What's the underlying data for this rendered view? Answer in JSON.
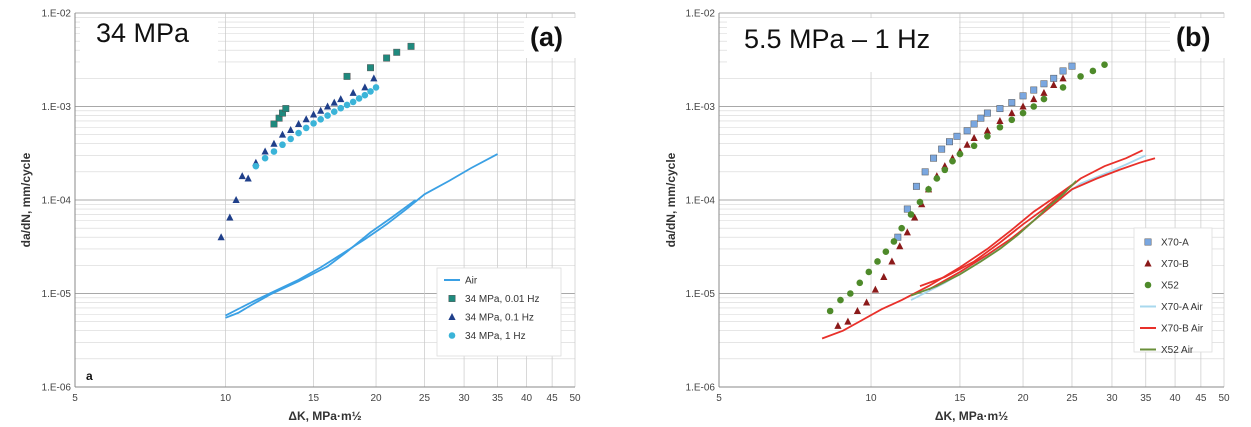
{
  "chart_data": [
    {
      "panel": "a",
      "type": "scatter",
      "title": "34 MPa",
      "panel_label": "(a)",
      "corner_note": "a",
      "xlabel": "ΔK, MPa·m½",
      "ylabel": "da/dN, mm/cycle",
      "xscale": "log",
      "yscale": "log",
      "xlim": [
        5,
        50
      ],
      "ylim": [
        1e-06,
        0.01
      ],
      "xticks": [
        5,
        10,
        15,
        20,
        25,
        30,
        35,
        40,
        45,
        50
      ],
      "yticks": [
        {
          "v": 1e-06,
          "label": "1.E-06"
        },
        {
          "v": 1e-05,
          "label": "1.E-05"
        },
        {
          "v": 0.0001,
          "label": "1.E-04"
        },
        {
          "v": 0.001,
          "label": "1.E-03"
        },
        {
          "v": 0.01,
          "label": "1.E-02"
        }
      ],
      "grid": true,
      "legend_position": "bottom-right",
      "series": [
        {
          "name": "Air",
          "kind": "line",
          "color": "#3aa0e4",
          "lines": [
            [
              [
                10,
                5.8e-06
              ],
              [
                10.7,
                7e-06
              ],
              [
                11.5,
                8.5e-06
              ],
              [
                12.5,
                1.05e-05
              ],
              [
                14,
                1.4e-05
              ],
              [
                15.5,
                1.9e-05
              ],
              [
                17,
                2.6e-05
              ],
              [
                19,
                3.8e-05
              ],
              [
                21,
                5.5e-05
              ],
              [
                23,
                8e-05
              ],
              [
                25,
                0.000115
              ],
              [
                28,
                0.00016
              ],
              [
                31,
                0.00022
              ],
              [
                35,
                0.00031
              ]
            ],
            [
              [
                10,
                5.5e-06
              ],
              [
                10.6,
                6.2e-06
              ],
              [
                11.3,
                7.6e-06
              ],
              [
                12.3,
                9.8e-06
              ],
              [
                14,
                1.35e-05
              ],
              [
                16,
                1.95e-05
              ],
              [
                17.5,
                2.8e-05
              ],
              [
                19.5,
                4.5e-05
              ],
              [
                21.5,
                6.5e-05
              ],
              [
                24,
                0.0001
              ]
            ]
          ]
        },
        {
          "name": "34 MPa, 0.01 Hz",
          "kind": "square",
          "color": "#1f8a7e",
          "points": [
            [
              12.5,
              0.00065
            ],
            [
              12.8,
              0.00075
            ],
            [
              13,
              0.00085
            ],
            [
              13.2,
              0.00095
            ],
            [
              17.5,
              0.0021
            ],
            [
              19.5,
              0.0026
            ],
            [
              21,
              0.0033
            ],
            [
              22,
              0.0038
            ],
            [
              23.5,
              0.0044
            ]
          ]
        },
        {
          "name": "34 MPa, 0.1 Hz",
          "kind": "triangle",
          "color": "#1f3f8a",
          "points": [
            [
              9.8,
              4e-05
            ],
            [
              10.2,
              6.5e-05
            ],
            [
              10.5,
              0.0001
            ],
            [
              10.8,
              0.00018
            ],
            [
              11.1,
              0.00017
            ],
            [
              11.5,
              0.00025
            ],
            [
              12,
              0.00033
            ],
            [
              12.5,
              0.0004
            ],
            [
              13,
              0.0005
            ],
            [
              13.5,
              0.00056
            ],
            [
              14,
              0.00065
            ],
            [
              14.5,
              0.00073
            ],
            [
              15,
              0.00082
            ],
            [
              15.5,
              0.0009
            ],
            [
              16,
              0.001
            ],
            [
              16.5,
              0.0011
            ],
            [
              17,
              0.0012
            ],
            [
              18,
              0.0014
            ],
            [
              19,
              0.0016
            ],
            [
              19.8,
              0.002
            ]
          ]
        },
        {
          "name": "34 MPa, 1 Hz",
          "kind": "circle",
          "color": "#3bb4d8",
          "points": [
            [
              11.5,
              0.00023
            ],
            [
              12,
              0.00028
            ],
            [
              12.5,
              0.00033
            ],
            [
              13,
              0.00039
            ],
            [
              13.5,
              0.00045
            ],
            [
              14,
              0.00052
            ],
            [
              14.5,
              0.00059
            ],
            [
              15,
              0.00066
            ],
            [
              15.5,
              0.00073
            ],
            [
              16,
              0.0008
            ],
            [
              16.5,
              0.00088
            ],
            [
              17,
              0.00096
            ],
            [
              17.5,
              0.00104
            ],
            [
              18,
              0.00112
            ],
            [
              18.5,
              0.00122
            ],
            [
              19,
              0.00132
            ],
            [
              19.5,
              0.00145
            ],
            [
              20,
              0.0016
            ]
          ]
        }
      ]
    },
    {
      "panel": "b",
      "type": "scatter",
      "title": "5.5 MPa – 1 Hz",
      "panel_label": "(b)",
      "xlabel": "ΔK, MPa·m½",
      "ylabel": "da/dN, mm/cycle",
      "xscale": "log",
      "yscale": "log",
      "xlim": [
        5,
        50
      ],
      "ylim": [
        1e-06,
        0.01
      ],
      "xticks": [
        5,
        10,
        15,
        20,
        25,
        30,
        35,
        40,
        45,
        50
      ],
      "yticks": [
        {
          "v": 1e-06,
          "label": "1.E-06"
        },
        {
          "v": 1e-05,
          "label": "1.E-05"
        },
        {
          "v": 0.0001,
          "label": "1.E-04"
        },
        {
          "v": 0.001,
          "label": "1.E-03"
        },
        {
          "v": 0.01,
          "label": "1.E-02"
        }
      ],
      "grid": true,
      "legend_position": "right",
      "series": [
        {
          "name": "X70-A",
          "kind": "square",
          "color": "#7aa7e0",
          "points": [
            [
              11.3,
              4e-05
            ],
            [
              11.8,
              8e-05
            ],
            [
              12.3,
              0.00014
            ],
            [
              12.8,
              0.0002
            ],
            [
              13.3,
              0.00028
            ],
            [
              13.8,
              0.00035
            ],
            [
              14.3,
              0.00042
            ],
            [
              14.8,
              0.00048
            ],
            [
              15.5,
              0.00055
            ],
            [
              16,
              0.00065
            ],
            [
              16.5,
              0.00075
            ],
            [
              17,
              0.00085
            ],
            [
              18,
              0.00095
            ],
            [
              19,
              0.0011
            ],
            [
              20,
              0.0013
            ],
            [
              21,
              0.0015
            ],
            [
              22,
              0.00175
            ],
            [
              23,
              0.002
            ],
            [
              24,
              0.0024
            ],
            [
              25,
              0.0027
            ]
          ]
        },
        {
          "name": "X70-B",
          "kind": "triangle",
          "color": "#8b1a1a",
          "points": [
            [
              8.6,
              4.5e-06
            ],
            [
              9,
              5e-06
            ],
            [
              9.4,
              6.5e-06
            ],
            [
              9.8,
              8e-06
            ],
            [
              10.2,
              1.1e-05
            ],
            [
              10.6,
              1.5e-05
            ],
            [
              11,
              2.2e-05
            ],
            [
              11.4,
              3.2e-05
            ],
            [
              11.8,
              4.5e-05
            ],
            [
              12.2,
              6.5e-05
            ],
            [
              12.6,
              9e-05
            ],
            [
              13,
              0.00013
            ],
            [
              13.5,
              0.00018
            ],
            [
              14,
              0.00023
            ],
            [
              14.5,
              0.00028
            ],
            [
              15,
              0.00033
            ],
            [
              15.5,
              0.00039
            ],
            [
              16,
              0.00046
            ],
            [
              17,
              0.00055
            ],
            [
              18,
              0.0007
            ],
            [
              19,
              0.00085
            ],
            [
              20,
              0.001
            ],
            [
              21,
              0.0012
            ],
            [
              22,
              0.0014
            ],
            [
              23,
              0.0017
            ],
            [
              24,
              0.002
            ]
          ]
        },
        {
          "name": "X52",
          "kind": "circle",
          "color": "#4e8a2a",
          "points": [
            [
              8.3,
              6.5e-06
            ],
            [
              8.7,
              8.5e-06
            ],
            [
              9.1,
              1e-05
            ],
            [
              9.5,
              1.3e-05
            ],
            [
              9.9,
              1.7e-05
            ],
            [
              10.3,
              2.2e-05
            ],
            [
              10.7,
              2.8e-05
            ],
            [
              11.1,
              3.6e-05
            ],
            [
              11.5,
              5e-05
            ],
            [
              12,
              7e-05
            ],
            [
              12.5,
              9.5e-05
            ],
            [
              13,
              0.00013
            ],
            [
              13.5,
              0.00017
            ],
            [
              14,
              0.00021
            ],
            [
              14.5,
              0.00026
            ],
            [
              15,
              0.00031
            ],
            [
              16,
              0.00038
            ],
            [
              17,
              0.00048
            ],
            [
              18,
              0.0006
            ],
            [
              19,
              0.00072
            ],
            [
              20,
              0.00085
            ],
            [
              21,
              0.001
            ],
            [
              22,
              0.0012
            ],
            [
              24,
              0.0016
            ],
            [
              26,
              0.0021
            ],
            [
              27.5,
              0.0024
            ],
            [
              29,
              0.0028
            ]
          ]
        },
        {
          "name": "X70-A Air",
          "kind": "line",
          "color": "#a8d8ee",
          "lines": [
            [
              [
                12,
                8.5e-06
              ],
              [
                14,
                1.3e-05
              ],
              [
                16,
                2e-05
              ],
              [
                18,
                3.1e-05
              ],
              [
                20,
                4.8e-05
              ],
              [
                22,
                7.5e-05
              ],
              [
                24,
                0.00011
              ],
              [
                26,
                0.00015
              ],
              [
                29,
                0.00019
              ],
              [
                32,
                0.00024
              ],
              [
                35,
                0.0003
              ]
            ]
          ]
        },
        {
          "name": "X70-B Air",
          "kind": "line",
          "color": "#e8302a",
          "lines": [
            [
              [
                8,
                3.3e-06
              ],
              [
                8.8,
                4e-06
              ],
              [
                9.6,
                5.2e-06
              ],
              [
                10.5,
                6.8e-06
              ],
              [
                11.5,
                8.5e-06
              ],
              [
                13,
                1.2e-05
              ],
              [
                15,
                1.9e-05
              ],
              [
                17,
                3e-05
              ],
              [
                19,
                4.8e-05
              ],
              [
                21,
                7.5e-05
              ],
              [
                23,
                0.000105
              ],
              [
                25,
                0.000145
              ]
            ],
            [
              [
                12.5,
                1.2e-05
              ],
              [
                14,
                1.5e-05
              ],
              [
                16,
                2.2e-05
              ],
              [
                18,
                3.5e-05
              ],
              [
                20,
                5.5e-05
              ],
              [
                22,
                8e-05
              ],
              [
                24,
                0.00012
              ],
              [
                26,
                0.00017
              ],
              [
                29,
                0.00023
              ],
              [
                32,
                0.00028
              ],
              [
                34.5,
                0.00034
              ]
            ],
            [
              [
                13,
                1.1e-05
              ],
              [
                15,
                1.7e-05
              ],
              [
                17,
                2.6e-05
              ],
              [
                19,
                3.9e-05
              ],
              [
                21,
                6e-05
              ],
              [
                23,
                9e-05
              ],
              [
                25,
                0.00013
              ],
              [
                28,
                0.00017
              ],
              [
                31,
                0.00021
              ],
              [
                34,
                0.00025
              ],
              [
                36.5,
                0.00028
              ]
            ]
          ]
        },
        {
          "name": "X52 Air",
          "kind": "line",
          "color": "#6a8f3a",
          "lines": [
            [
              [
                12,
                9.5e-06
              ],
              [
                13.5,
                1.2e-05
              ],
              [
                15,
                1.6e-05
              ],
              [
                16.5,
                2.2e-05
              ],
              [
                18,
                3e-05
              ],
              [
                19.5,
                4.2e-05
              ],
              [
                21,
                6e-05
              ],
              [
                22.5,
                8.5e-05
              ],
              [
                24,
                0.000115
              ],
              [
                25.5,
                0.00016
              ]
            ]
          ]
        }
      ]
    }
  ]
}
